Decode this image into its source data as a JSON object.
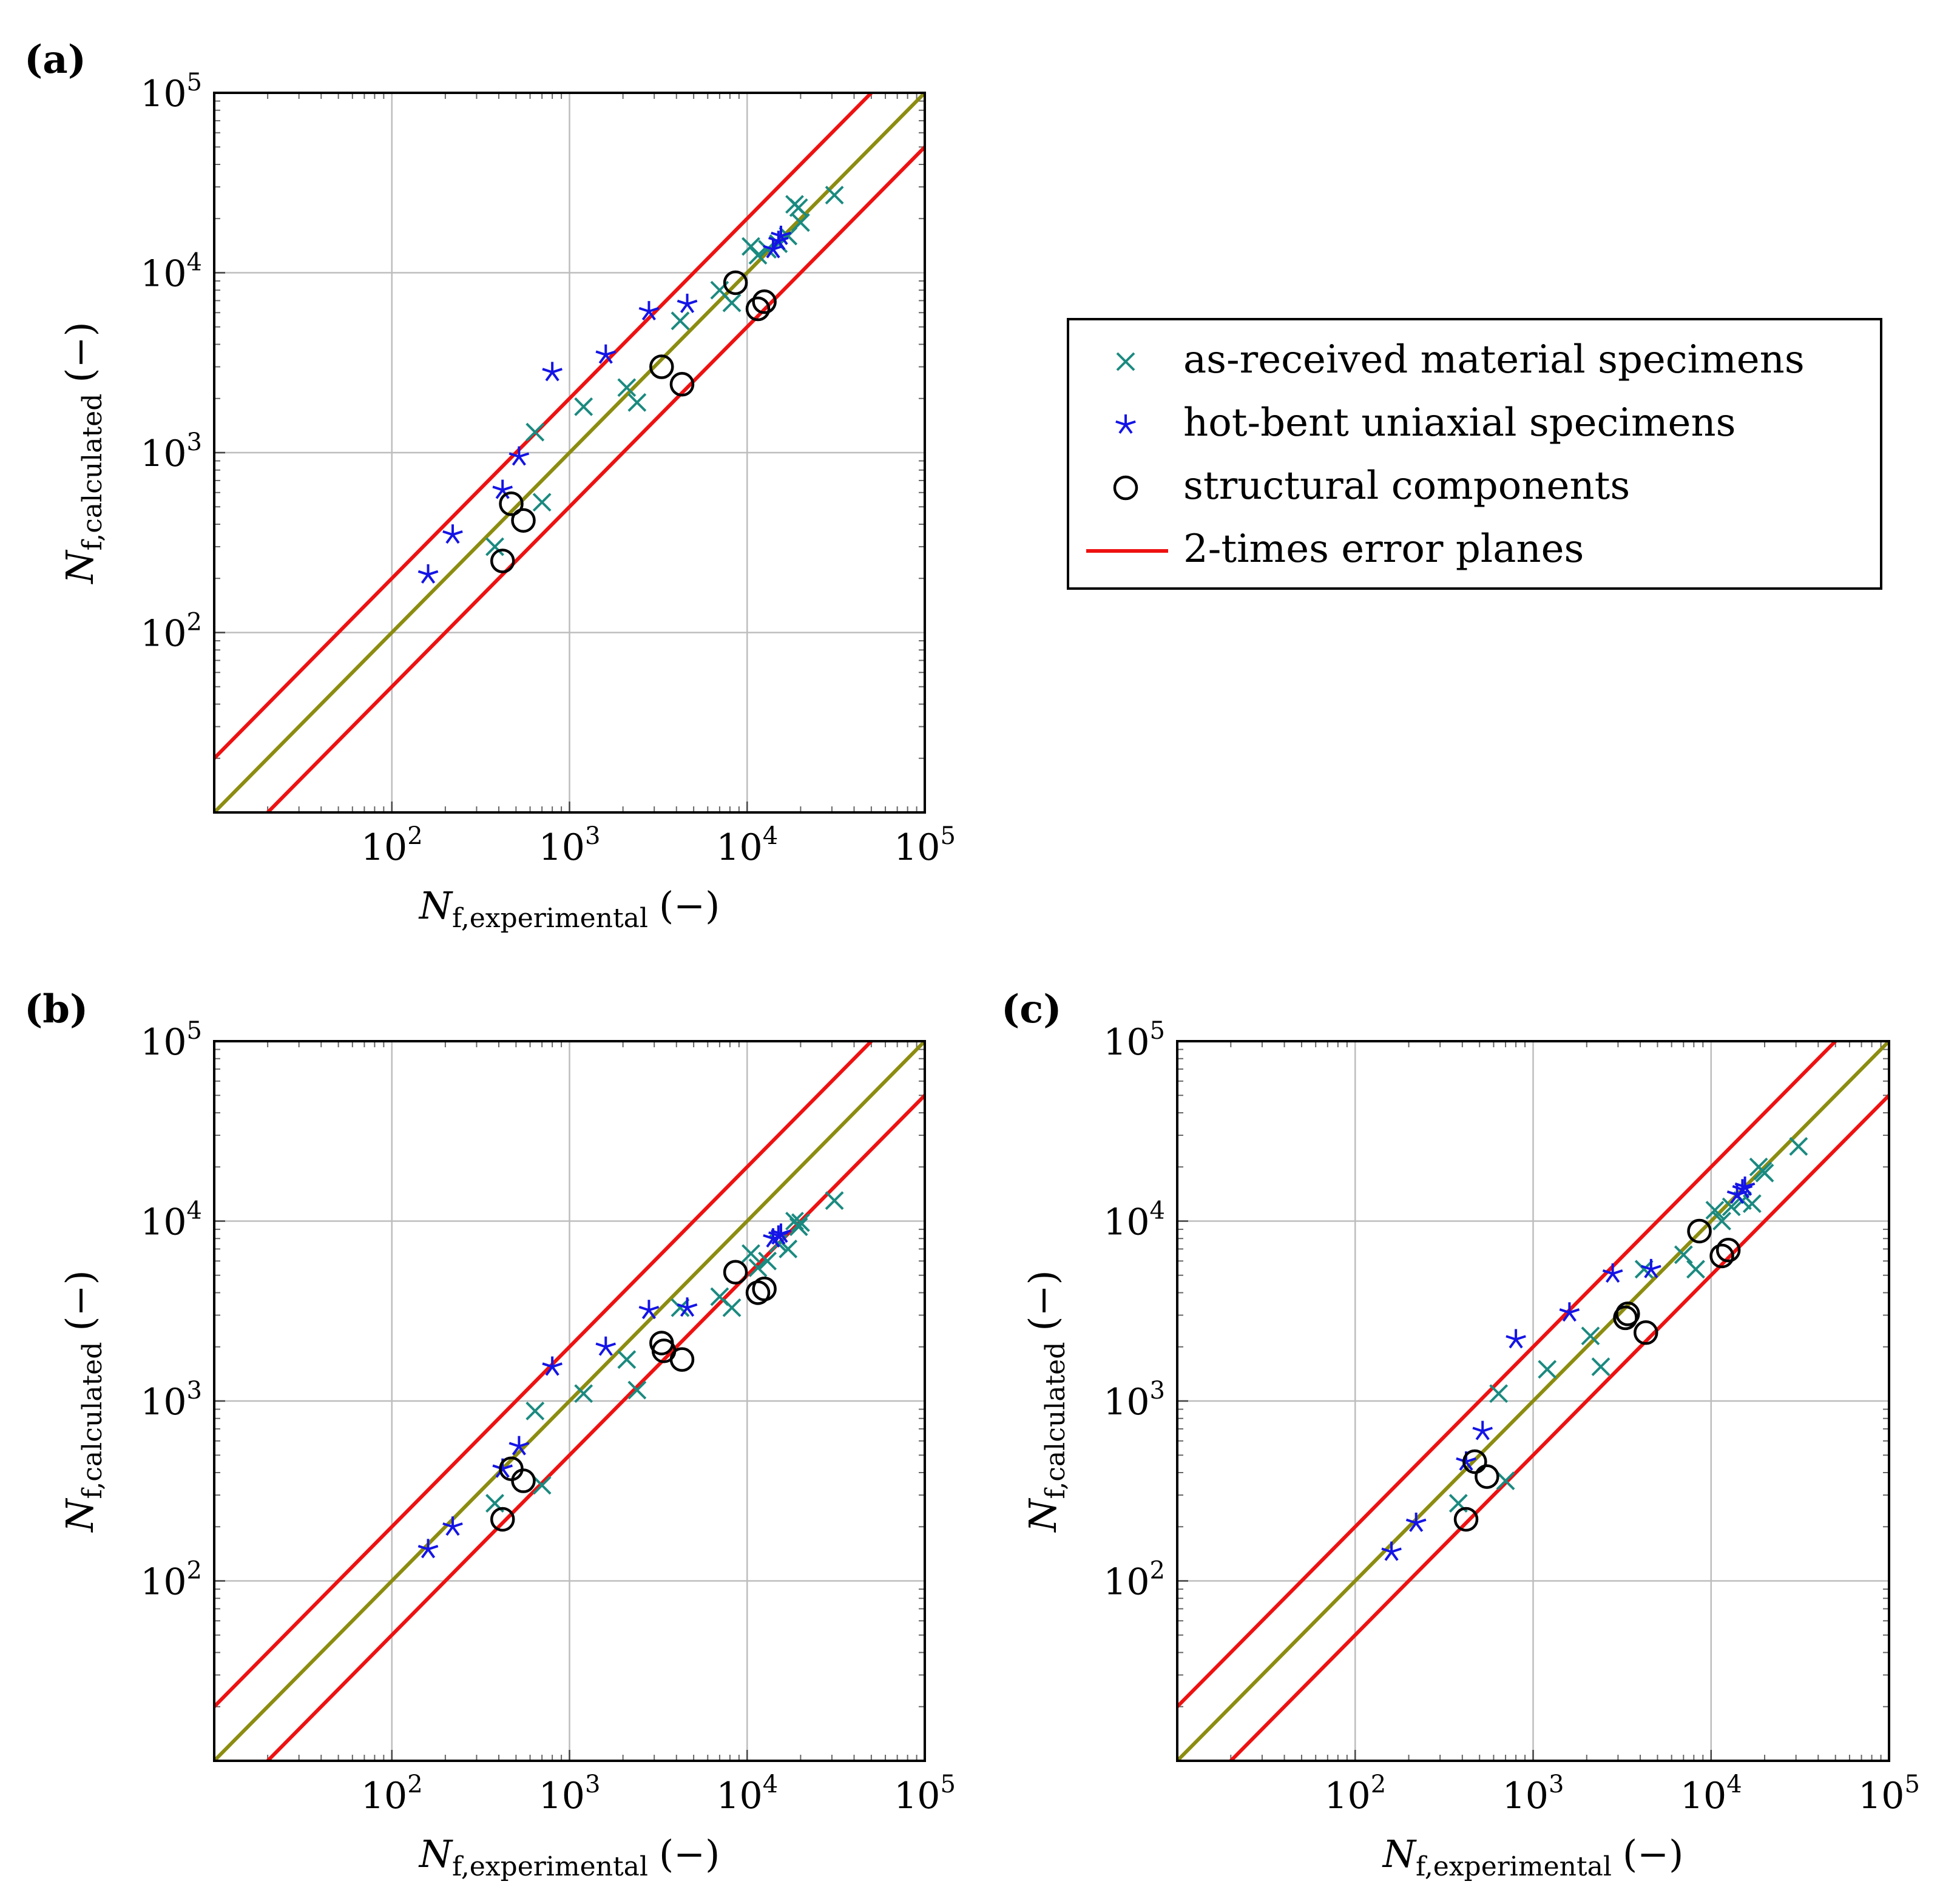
{
  "colors": {
    "as_received": "#1a8a80",
    "hot_bent": "#1414e6",
    "structural": "#000000",
    "error_planes": "#ee1111",
    "ideal": "#8c8c10",
    "grid": "#bdbdbd"
  },
  "legend": {
    "entries": [
      {
        "label": "as-received material specimens",
        "marker": "cross",
        "color_key": "as_received"
      },
      {
        "label": "hot-bent uniaxial specimens",
        "marker": "star",
        "color_key": "hot_bent"
      },
      {
        "label": "structural components",
        "marker": "circle",
        "color_key": "structural"
      },
      {
        "label": "2-times error planes",
        "marker": "line",
        "color_key": "error_planes"
      }
    ]
  },
  "chart_data": [
    {
      "panel_label": "(a)",
      "type": "scatter",
      "xscale": "log",
      "yscale": "log",
      "xlim": [
        10,
        100000
      ],
      "ylim": [
        10,
        100000
      ],
      "xlabel": {
        "base": "N",
        "sub": "f,experimental",
        "unit": "(−)"
      },
      "ylabel": {
        "base": "N",
        "sub": "f,calculated",
        "unit": "(−)"
      },
      "x_ticks": [
        {
          "base": "10",
          "exp": "2",
          "value": 100
        },
        {
          "base": "10",
          "exp": "3",
          "value": 1000
        },
        {
          "base": "10",
          "exp": "4",
          "value": 10000
        },
        {
          "base": "10",
          "exp": "5",
          "value": 100000
        }
      ],
      "y_ticks": [
        {
          "base": "10",
          "exp": "2",
          "value": 100
        },
        {
          "base": "10",
          "exp": "3",
          "value": 1000
        },
        {
          "base": "10",
          "exp": "4",
          "value": 10000
        },
        {
          "base": "10",
          "exp": "5",
          "value": 100000
        }
      ],
      "grid": true,
      "lines": [
        {
          "name": "ideal",
          "factor": 1
        },
        {
          "name": "2-times error planes upper",
          "factor": 2
        },
        {
          "name": "2-times error planes lower",
          "factor": 0.5
        }
      ],
      "series": [
        {
          "name": "as-received material specimens",
          "marker": "cross",
          "points": [
            [
              380,
              300
            ],
            [
              640,
              1300
            ],
            [
              700,
              530
            ],
            [
              1200,
              1800
            ],
            [
              2100,
              2300
            ],
            [
              2400,
              1900
            ],
            [
              4200,
              5400
            ],
            [
              7000,
              8000
            ],
            [
              8200,
              6800
            ],
            [
              10500,
              14000
            ],
            [
              11500,
              12500
            ],
            [
              13000,
              13500
            ],
            [
              15000,
              14500
            ],
            [
              17000,
              16000
            ],
            [
              18500,
              24000
            ],
            [
              19500,
              23000
            ],
            [
              20000,
              19000
            ],
            [
              31000,
              27000
            ]
          ]
        },
        {
          "name": "hot-bent uniaxial specimens",
          "marker": "star",
          "points": [
            [
              160,
              210
            ],
            [
              220,
              350
            ],
            [
              420,
              620
            ],
            [
              520,
              950
            ],
            [
              800,
              2800
            ],
            [
              1600,
              3500
            ],
            [
              2800,
              6100
            ],
            [
              4600,
              6700
            ],
            [
              14000,
              13500
            ],
            [
              15000,
              15000
            ],
            [
              15500,
              16000
            ]
          ]
        },
        {
          "name": "structural components",
          "marker": "circle",
          "points": [
            [
              420,
              250
            ],
            [
              470,
              520
            ],
            [
              550,
              420
            ],
            [
              3300,
              3000
            ],
            [
              4300,
              2400
            ],
            [
              8600,
              8800
            ],
            [
              11500,
              6300
            ],
            [
              12500,
              6900
            ]
          ]
        }
      ]
    },
    {
      "panel_label": "(b)",
      "type": "scatter",
      "xscale": "log",
      "yscale": "log",
      "xlim": [
        10,
        100000
      ],
      "ylim": [
        10,
        100000
      ],
      "xlabel": {
        "base": "N",
        "sub": "f,experimental",
        "unit": "(−)"
      },
      "ylabel": {
        "base": "N",
        "sub": "f,calculated",
        "unit": "(−)"
      },
      "x_ticks": [
        {
          "base": "10",
          "exp": "2",
          "value": 100
        },
        {
          "base": "10",
          "exp": "3",
          "value": 1000
        },
        {
          "base": "10",
          "exp": "4",
          "value": 10000
        },
        {
          "base": "10",
          "exp": "5",
          "value": 100000
        }
      ],
      "y_ticks": [
        {
          "base": "10",
          "exp": "2",
          "value": 100
        },
        {
          "base": "10",
          "exp": "3",
          "value": 1000
        },
        {
          "base": "10",
          "exp": "4",
          "value": 10000
        },
        {
          "base": "10",
          "exp": "5",
          "value": 100000
        }
      ],
      "grid": true,
      "lines": [
        {
          "name": "ideal",
          "factor": 1
        },
        {
          "name": "2-times error planes upper",
          "factor": 2
        },
        {
          "name": "2-times error planes lower",
          "factor": 0.5
        }
      ],
      "series": [
        {
          "name": "as-received material specimens",
          "marker": "cross",
          "points": [
            [
              380,
              270
            ],
            [
              640,
              880
            ],
            [
              700,
              340
            ],
            [
              1200,
              1100
            ],
            [
              2100,
              1700
            ],
            [
              2400,
              1150
            ],
            [
              4200,
              3300
            ],
            [
              7000,
              3800
            ],
            [
              8200,
              3300
            ],
            [
              10500,
              6600
            ],
            [
              11500,
              5500
            ],
            [
              13000,
              6000
            ],
            [
              15000,
              7500
            ],
            [
              17000,
              7000
            ],
            [
              18500,
              10000
            ],
            [
              19500,
              9300
            ],
            [
              20000,
              9800
            ],
            [
              31000,
              13000
            ]
          ]
        },
        {
          "name": "hot-bent uniaxial specimens",
          "marker": "star",
          "points": [
            [
              160,
              150
            ],
            [
              220,
              200
            ],
            [
              420,
              420
            ],
            [
              520,
              560
            ],
            [
              800,
              1550
            ],
            [
              1600,
              2000
            ],
            [
              2800,
              3200
            ],
            [
              4600,
              3300
            ],
            [
              14000,
              8000
            ],
            [
              15000,
              8300
            ],
            [
              15500,
              8500
            ]
          ]
        },
        {
          "name": "structural components",
          "marker": "circle",
          "points": [
            [
              420,
              220
            ],
            [
              470,
              420
            ],
            [
              550,
              360
            ],
            [
              3300,
              2100
            ],
            [
              3400,
              1900
            ],
            [
              4300,
              1700
            ],
            [
              8600,
              5200
            ],
            [
              11500,
              4000
            ],
            [
              12500,
              4200
            ]
          ]
        }
      ]
    },
    {
      "panel_label": "(c)",
      "type": "scatter",
      "xscale": "log",
      "yscale": "log",
      "xlim": [
        10,
        100000
      ],
      "ylim": [
        10,
        100000
      ],
      "xlabel": {
        "base": "N",
        "sub": "f,experimental",
        "unit": "(−)"
      },
      "ylabel": {
        "base": "N",
        "sub": "f,calculated",
        "unit": "(−)"
      },
      "x_ticks": [
        {
          "base": "10",
          "exp": "2",
          "value": 100
        },
        {
          "base": "10",
          "exp": "3",
          "value": 1000
        },
        {
          "base": "10",
          "exp": "4",
          "value": 10000
        },
        {
          "base": "10",
          "exp": "5",
          "value": 100000
        }
      ],
      "y_ticks": [
        {
          "base": "10",
          "exp": "2",
          "value": 100
        },
        {
          "base": "10",
          "exp": "3",
          "value": 1000
        },
        {
          "base": "10",
          "exp": "4",
          "value": 10000
        },
        {
          "base": "10",
          "exp": "5",
          "value": 100000
        }
      ],
      "grid": true,
      "lines": [
        {
          "name": "ideal",
          "factor": 1
        },
        {
          "name": "2-times error planes upper",
          "factor": 2
        },
        {
          "name": "2-times error planes lower",
          "factor": 0.5
        }
      ],
      "series": [
        {
          "name": "as-received material specimens",
          "marker": "cross",
          "points": [
            [
              380,
              270
            ],
            [
              640,
              1100
            ],
            [
              700,
              360
            ],
            [
              1200,
              1500
            ],
            [
              2100,
              2300
            ],
            [
              2400,
              1550
            ],
            [
              4200,
              5400
            ],
            [
              7000,
              6500
            ],
            [
              8200,
              5400
            ],
            [
              10500,
              11500
            ],
            [
              11500,
              10000
            ],
            [
              13000,
              12000
            ],
            [
              15000,
              13000
            ],
            [
              17000,
              12500
            ],
            [
              18500,
              20000
            ],
            [
              19500,
              19000
            ],
            [
              20000,
              18500
            ],
            [
              31000,
              26000
            ]
          ]
        },
        {
          "name": "hot-bent uniaxial specimens",
          "marker": "star",
          "points": [
            [
              160,
              145
            ],
            [
              220,
              210
            ],
            [
              420,
              460
            ],
            [
              520,
              680
            ],
            [
              800,
              2200
            ],
            [
              1600,
              3100
            ],
            [
              2800,
              5100
            ],
            [
              4600,
              5400
            ],
            [
              14000,
              14000
            ],
            [
              15000,
              15000
            ],
            [
              15500,
              15500
            ]
          ]
        },
        {
          "name": "structural components",
          "marker": "circle",
          "points": [
            [
              420,
              220
            ],
            [
              470,
              460
            ],
            [
              550,
              380
            ],
            [
              3300,
              2900
            ],
            [
              3400,
              3050
            ],
            [
              4300,
              2400
            ],
            [
              8600,
              8800
            ],
            [
              11500,
              6400
            ],
            [
              12500,
              6900
            ]
          ]
        }
      ]
    }
  ]
}
